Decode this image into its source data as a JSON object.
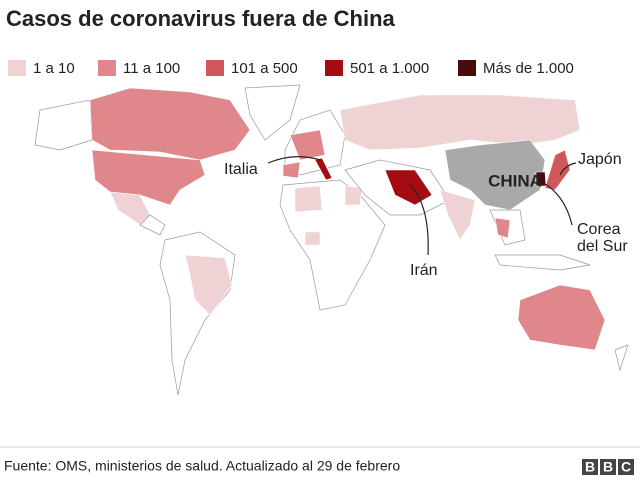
{
  "title": "Casos de coronavirus fuera de China",
  "legend": [
    {
      "label": "1 a 10",
      "color": "#efd3d4"
    },
    {
      "label": "11 a 100",
      "color": "#e0878b"
    },
    {
      "label": "101 a 500",
      "color": "#d0585c"
    },
    {
      "label": "501 a 1.000",
      "color": "#a30d12"
    },
    {
      "label": "Más de 1.000",
      "color": "#4a0b0b"
    }
  ],
  "labels": {
    "china": "CHINA",
    "italia": "Italia",
    "iran": "Irán",
    "japon": "Japón",
    "corea": [
      "Corea",
      "del Sur"
    ]
  },
  "source": "Fuente: OMS, ministerios de salud. Actualizado al 29 de febrero",
  "logo": [
    "B",
    "B",
    "C"
  ]
}
